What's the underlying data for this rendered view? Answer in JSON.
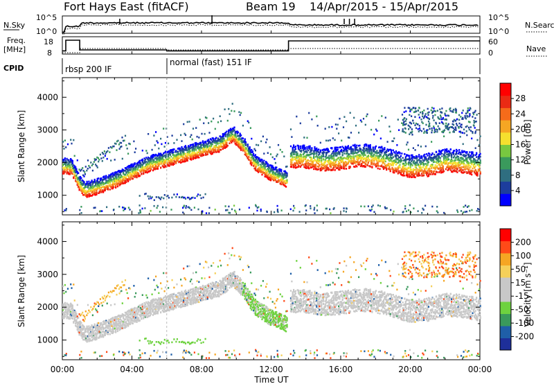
{
  "header": {
    "radar": "Fort Hays East (fitACF)",
    "beam": "Beam 19",
    "dates": "14/Apr/2015 - 15/Apr/2015"
  },
  "nsky": {
    "label": "N.Sky",
    "right_label": "N.Search",
    "left_ticks": [
      "10^5",
      "10^0"
    ],
    "right_ticks": [
      "10^5",
      "10^0"
    ]
  },
  "freq": {
    "label_top": "Freq.",
    "label_bottom": "[MHz]",
    "right_label": "Nave",
    "left_ticks": [
      "18",
      "8"
    ],
    "right_ticks": [
      "60",
      "0"
    ],
    "series": {
      "time_h": [
        0,
        0.2,
        0.2,
        1.0,
        1.0,
        6.0,
        6.0,
        13.0,
        13.0,
        24
      ],
      "freq_mhz": [
        10.3,
        10.3,
        18,
        18,
        11,
        11,
        10.3,
        10.3,
        17.5,
        17.5
      ]
    }
  },
  "cpid": {
    "label": "CPID",
    "segments": [
      {
        "start_h": 0,
        "label": "rbsp 200 IF"
      },
      {
        "start_h": 6,
        "label": "normal (fast) 151 IF"
      }
    ]
  },
  "xaxis": {
    "label": "Time UT",
    "ticks": [
      "00:00",
      "04:00",
      "08:00",
      "12:00",
      "16:00",
      "20:00",
      "00:00"
    ]
  },
  "colorbars": {
    "power": {
      "title": "Power [dB]",
      "ticks": [
        "28",
        "24",
        "20",
        "16",
        "12",
        "8",
        "4"
      ],
      "colors": [
        "#0000ff",
        "#1d3d9d",
        "#2f6e80",
        "#3a9a5c",
        "#78c840",
        "#f5e02e",
        "#f5a623",
        "#f56b1a",
        "#ea2a14",
        "#ff0000"
      ]
    },
    "velocity": {
      "title": "Velocity [m s⁻¹]",
      "ticks": [
        "200",
        "100",
        "50",
        "15",
        "-15",
        "-50",
        "-100",
        "-200"
      ],
      "colors": [
        "#ff0000",
        "#ff4a18",
        "#f5a623",
        "#f5d05a",
        "#c8c8c8",
        "#c8c8c8",
        "#6ed23f",
        "#3a9a5c",
        "#1f5fa8",
        "#1e2f9a"
      ]
    }
  },
  "chart_data": [
    {
      "type": "heatmap",
      "panel": "power",
      "ylabel": "Slant Range [km]",
      "xlabel": "",
      "yticks": [
        "1000",
        "2000",
        "3000",
        "4000"
      ],
      "xlim": [
        0,
        24
      ],
      "ylim": [
        400,
        4600
      ],
      "colorbar": "Power [dB]",
      "band_center": {
        "time_h": [
          0,
          0.5,
          1.0,
          1.3,
          2.0,
          3.0,
          4.0,
          5.0,
          6.0,
          7.0,
          8.0,
          9.0,
          9.8,
          10.4,
          11.0,
          12.0,
          12.9,
          13.0,
          14.0,
          15.0,
          16.0,
          17.0,
          18.0,
          19.0,
          20.0,
          21.0,
          22.0,
          23.0,
          24.0
        ],
        "range_km": [
          1780,
          1760,
          1200,
          1050,
          1150,
          1350,
          1600,
          1850,
          2000,
          2150,
          2300,
          2450,
          2750,
          2400,
          1900,
          1550,
          1350,
          1950,
          1950,
          1850,
          1900,
          2000,
          1950,
          1800,
          1650,
          1700,
          1850,
          1800,
          1700
        ]
      }
    },
    {
      "type": "heatmap",
      "panel": "velocity",
      "ylabel": "Slant Range [km]",
      "xlabel": "Time UT",
      "yticks": [
        "1000",
        "2000",
        "3000",
        "4000"
      ],
      "xlim": [
        0,
        24
      ],
      "ylim": [
        400,
        4600
      ],
      "colorbar": "Velocity [m s⁻¹]"
    }
  ]
}
